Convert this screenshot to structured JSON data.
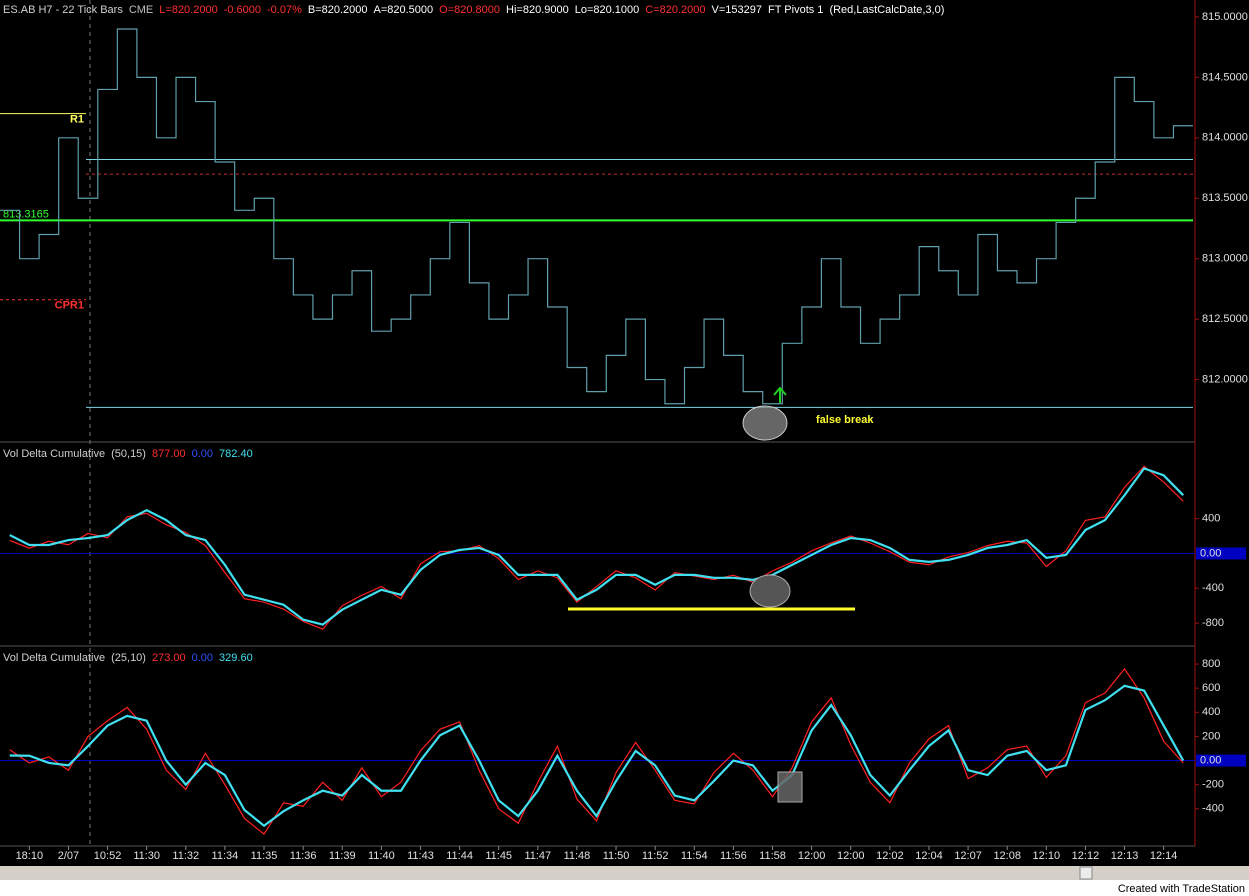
{
  "chart_data": [
    {
      "type": "price-steps",
      "title": "ES.AB H7 - 22 Tick Bars",
      "header": [
        {
          "text": "CME",
          "color": "#c0c0c0"
        },
        {
          "text": "L=820.2000",
          "color": "#ff3030"
        },
        {
          "text": "-0.6000",
          "color": "#ff3030"
        },
        {
          "text": "-0.07%",
          "color": "#ff3030"
        },
        {
          "text": "B=820.2000",
          "color": "#ffffff"
        },
        {
          "text": "A=820.5000",
          "color": "#ffffff"
        },
        {
          "text": "O=820.8000",
          "color": "#ff3030"
        },
        {
          "text": "Hi=820.9000",
          "color": "#ffffff"
        },
        {
          "text": "Lo=820.1000",
          "color": "#ffffff"
        },
        {
          "text": "C=820.2000",
          "color": "#ff3030"
        },
        {
          "text": "V=153297",
          "color": "#ffffff"
        },
        {
          "text": "FT Pivots 1",
          "color": "#ffffff"
        },
        {
          "text": "(Red,LastCalcDate,3,0)",
          "color": "#ffffff"
        }
      ],
      "series": [
        {
          "color": "#5f9eaa",
          "values": [
            813.4,
            813.0,
            813.2,
            814.0,
            813.5,
            814.4,
            814.9,
            814.5,
            814.0,
            814.5,
            814.3,
            813.8,
            813.4,
            813.5,
            813.0,
            812.7,
            812.5,
            812.7,
            812.9,
            812.4,
            812.5,
            812.7,
            813.0,
            813.3,
            812.8,
            812.5,
            812.7,
            813.0,
            812.6,
            812.1,
            811.9,
            812.2,
            812.5,
            812.0,
            811.8,
            812.1,
            812.5,
            812.2,
            811.9,
            811.8,
            812.3,
            812.6,
            813.0,
            812.6,
            812.3,
            812.5,
            812.7,
            813.1,
            812.9,
            812.7,
            813.2,
            812.9,
            812.8,
            813.0,
            813.3,
            813.5,
            813.8,
            814.5,
            814.3,
            814.0,
            814.1
          ]
        }
      ],
      "ylim": [
        811.5,
        815.14
      ],
      "yticks": [
        {
          "value": 812,
          "label": "812.0000"
        },
        {
          "value": 812.5,
          "label": "812.5000"
        },
        {
          "value": 813,
          "label": "813.0000"
        },
        {
          "value": 813.5,
          "label": "813.5000"
        },
        {
          "value": 814,
          "label": "814.0000"
        },
        {
          "value": 814.5,
          "label": "814.5000"
        },
        {
          "value": 815,
          "label": "815.0000"
        }
      ],
      "levels": [
        {
          "label": "R1",
          "value": 814.2,
          "color": "#ffff60",
          "style": "solid"
        },
        {
          "value": 813.82,
          "color": "#7fd4e0",
          "style": "solid"
        },
        {
          "value": 813.7,
          "color": "#c03030",
          "style": "dash"
        },
        {
          "value": 813.3165,
          "color": "#30ff30",
          "style": "thick",
          "show_value": true
        },
        {
          "label": "CPR1",
          "value": 812.66,
          "color": "#ff3030",
          "style": "dash"
        },
        {
          "value": 811.77,
          "color": "#7fd4e0",
          "style": "solid"
        }
      ],
      "annotations": [
        {
          "text": "false break",
          "color": "#ffff30"
        }
      ]
    },
    {
      "type": "line",
      "title": "Vol Delta Cumulative",
      "params": "(50,15)",
      "header": [
        {
          "text": "877.00",
          "color": "#ff3030"
        },
        {
          "text": "0.00",
          "color": "#3050ff"
        },
        {
          "text": "782.40",
          "color": "#40e0f0"
        }
      ],
      "series": [
        {
          "color": "#ff2020",
          "values": [
            150,
            60,
            140,
            100,
            230,
            180,
            420,
            460,
            330,
            240,
            90,
            -220,
            -520,
            -560,
            -640,
            -780,
            -870,
            -600,
            -480,
            -380,
            -520,
            -120,
            20,
            30,
            90,
            -60,
            -300,
            -200,
            -280,
            -560,
            -380,
            -200,
            -280,
            -420,
            -220,
            -260,
            -300,
            -250,
            -330,
            -200,
            -100,
            30,
            120,
            200,
            120,
            20,
            -100,
            -130,
            -40,
            10,
            90,
            140,
            120,
            -150,
            30,
            380,
            420,
            760,
            1000,
            820,
            600
          ]
        },
        {
          "color": "#40e0f0",
          "values": [
            211,
            97,
            97,
            154,
            177,
            211,
            383,
            497,
            383,
            211,
            154,
            -131,
            -474,
            -531,
            -589,
            -760,
            -817,
            -646,
            -531,
            -417,
            -474,
            -189,
            -17,
            40,
            63,
            -17,
            -246,
            -246,
            -246,
            -531,
            -417,
            -246,
            -246,
            -360,
            -246,
            -246,
            -280,
            -280,
            -303,
            -246,
            -131,
            -17,
            97,
            177,
            154,
            63,
            -74,
            -97,
            -74,
            -17,
            63,
            97,
            154,
            -51,
            -17,
            269,
            383,
            669,
            977,
            897,
            669
          ]
        }
      ],
      "ylim": [
        -1040,
        1257
      ],
      "yticks": [
        400,
        {
          "value": 0,
          "label": "0.00"
        },
        -400,
        -800
      ],
      "zero_color": "#0000c0"
    },
    {
      "type": "line",
      "title": "Vol Delta Cumulative",
      "params": "(25,10)",
      "header": [
        {
          "text": "273.00",
          "color": "#ff3030"
        },
        {
          "text": "0.00",
          "color": "#3050ff"
        },
        {
          "text": "329.60",
          "color": "#40e0f0"
        }
      ],
      "series": [
        {
          "color": "#ff2020",
          "values": [
            90,
            -20,
            30,
            -80,
            200,
            330,
            440,
            260,
            -80,
            -240,
            60,
            -200,
            -480,
            -610,
            -350,
            -380,
            -180,
            -330,
            -60,
            -300,
            -180,
            80,
            260,
            320,
            -80,
            -400,
            -520,
            -180,
            120,
            -320,
            -500,
            -100,
            150,
            -80,
            -330,
            -360,
            -100,
            60,
            -80,
            -300,
            -60,
            320,
            520,
            130,
            -180,
            -350,
            -20,
            180,
            290,
            -150,
            -60,
            90,
            120,
            -140,
            40,
            480,
            560,
            760,
            520,
            160,
            -20
          ]
        },
        {
          "color": "#40e0f0",
          "values": [
            42,
            40,
            -20,
            -40,
            120,
            290,
            370,
            330,
            0,
            -200,
            -20,
            -120,
            -410,
            -540,
            -420,
            -330,
            -250,
            -290,
            -120,
            -250,
            -250,
            0,
            210,
            290,
            0,
            -330,
            -460,
            -250,
            40,
            -250,
            -460,
            -170,
            80,
            -40,
            -290,
            -330,
            -170,
            0,
            -40,
            -250,
            -120,
            250,
            460,
            210,
            -120,
            -290,
            -80,
            120,
            250,
            -80,
            -120,
            40,
            80,
            -80,
            -40,
            420,
            500,
            620,
            580,
            290,
            0
          ]
        }
      ],
      "ylim": [
        -700,
        933
      ],
      "yticks": [
        800,
        600,
        400,
        200,
        {
          "value": 0,
          "label": "0.00"
        },
        -200,
        -400
      ],
      "zero_color": "#0000c0",
      "categories": [
        null,
        "18:10",
        null,
        "2/07",
        null,
        "10:52",
        null,
        "11:30",
        null,
        "11:32",
        null,
        "11:34",
        null,
        "11:35",
        null,
        "11:36",
        null,
        "11:39",
        null,
        "11:40",
        null,
        "11:43",
        null,
        "11:44",
        null,
        "11:45",
        null,
        "11:47",
        null,
        "11:48",
        null,
        "11:50",
        null,
        "11:52",
        null,
        "11:54",
        null,
        "11:56",
        null,
        "11:58",
        null,
        "12:00",
        null,
        "12:00",
        null,
        "12:02",
        null,
        "12:04",
        null,
        "12:07",
        null,
        "12:08",
        null,
        "12:10",
        null,
        "12:12",
        null,
        "12:13",
        null,
        "12:14",
        null
      ]
    }
  ],
  "footer": "Created with TradeStation"
}
